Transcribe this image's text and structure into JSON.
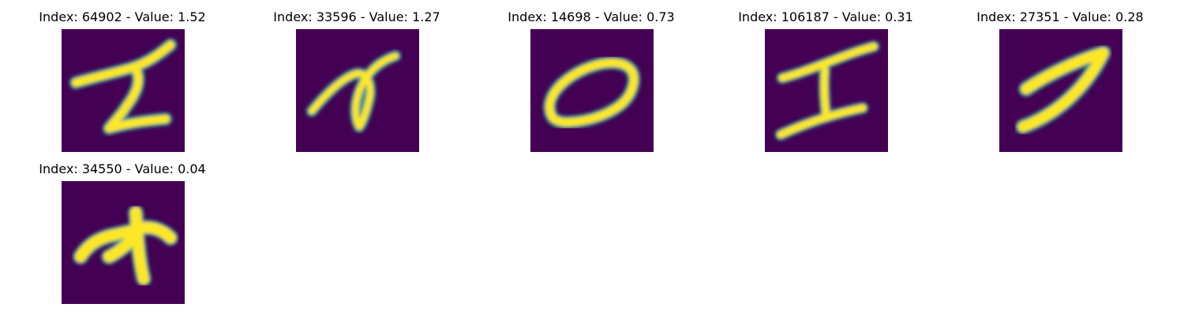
{
  "figure": {
    "background": "#ffffff",
    "image_background_color": "#440154",
    "colormap": [
      "#440154",
      "#3b528b",
      "#21918c",
      "#5ec962",
      "#fde725"
    ],
    "panels": [
      {
        "title": "Index: 64902 - Value: 1.52",
        "digit_shape": "handwritten-2"
      },
      {
        "title": "Index: 33596 - Value: 1.27",
        "digit_shape": "handwritten-curl"
      },
      {
        "title": "Index: 14698 - Value: 0.73",
        "digit_shape": "handwritten-0"
      },
      {
        "title": "Index: 106187 - Value: 0.31",
        "digit_shape": "handwritten-I"
      },
      {
        "title": "Index: 27351 - Value: 0.28",
        "digit_shape": "handwritten-7"
      },
      {
        "title": "Index: 34550 - Value: 0.04",
        "digit_shape": "handwritten-blob"
      }
    ]
  }
}
